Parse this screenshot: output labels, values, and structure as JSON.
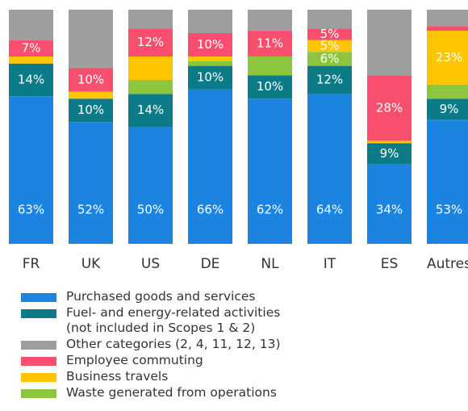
{
  "chart_data": {
    "type": "stacked_bar",
    "categories": [
      "FR",
      "UK",
      "US",
      "DE",
      "NL",
      "IT",
      "ES",
      "Autres"
    ],
    "ylim": [
      0,
      100
    ],
    "series": [
      {
        "name": "Purchased goods and services",
        "color": "#1a84e0",
        "values": [
          63,
          52,
          50,
          66,
          62,
          64,
          34,
          53
        ],
        "value_labels": [
          "63%",
          "52%",
          "50%",
          "66%",
          "62%",
          "64%",
          "34%",
          "53%"
        ]
      },
      {
        "name": "Fuel- and energy-related activities (not included in Scopes 1 & 2)",
        "color": "#0c7b88",
        "values": [
          14,
          10,
          14,
          10,
          10,
          12,
          9,
          9
        ],
        "value_labels": [
          "14%",
          "10%",
          "14%",
          "10%",
          "10%",
          "12%",
          "9%",
          "9%"
        ]
      },
      {
        "name": "Other categories (2, 4, 11, 12, 13)",
        "color": "#9e9e9e",
        "values": [
          13,
          25,
          8,
          10,
          9,
          8,
          28,
          7
        ],
        "value_labels": [
          null,
          null,
          null,
          null,
          null,
          null,
          null,
          null
        ]
      },
      {
        "name": "Employee commuting",
        "color": "#f94f6e",
        "values": [
          7,
          10,
          12,
          10,
          11,
          5,
          28,
          2
        ],
        "value_labels": [
          "7%",
          "10%",
          "12%",
          "10%",
          "11%",
          "5%",
          "28%",
          null
        ]
      },
      {
        "name": "Business travels",
        "color": "#ffc600",
        "values": [
          3,
          3,
          10,
          2,
          0,
          5,
          1,
          23
        ],
        "value_labels": [
          null,
          null,
          null,
          null,
          null,
          "5%",
          null,
          "23%"
        ]
      },
      {
        "name": "Waste generated from operations",
        "color": "#8cc63f",
        "values": [
          0,
          0,
          6,
          2,
          8,
          6,
          0,
          6
        ],
        "value_labels": [
          null,
          null,
          null,
          null,
          null,
          "6%",
          null,
          null
        ]
      }
    ]
  }
}
